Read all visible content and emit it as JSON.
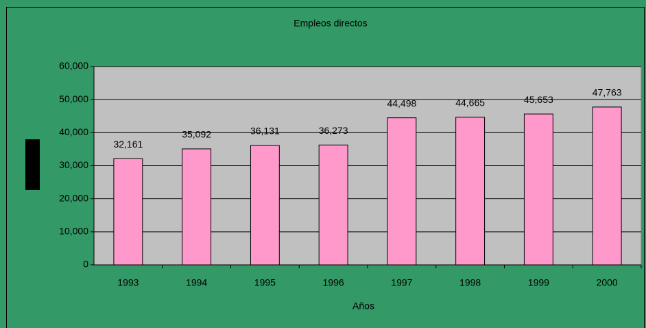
{
  "chart_data": {
    "type": "bar",
    "title": "Empleos directos",
    "xlabel": "Años",
    "categories": [
      "1993",
      "1994",
      "1995",
      "1996",
      "1997",
      "1998",
      "1999",
      "2000"
    ],
    "values": [
      32161,
      35092,
      36131,
      36273,
      44498,
      44665,
      45653,
      47763
    ],
    "value_labels": [
      "32,161",
      "35,092",
      "36,131",
      "36,273",
      "44,498",
      "44,665",
      "45,653",
      "47,763"
    ],
    "color": "#ff99cc",
    "ylim": [
      0,
      60000
    ],
    "yticks": [
      0,
      {
        "value": 10000,
        "label": "10,000"
      },
      {
        "value": 20000,
        "label": "20,000"
      },
      {
        "value": 30000,
        "label": "30,000"
      },
      {
        "value": 40000,
        "label": "40,000"
      },
      {
        "value": 50000,
        "label": "50,000"
      },
      {
        "value": 60000,
        "label": "60,000"
      }
    ],
    "grid": true
  }
}
